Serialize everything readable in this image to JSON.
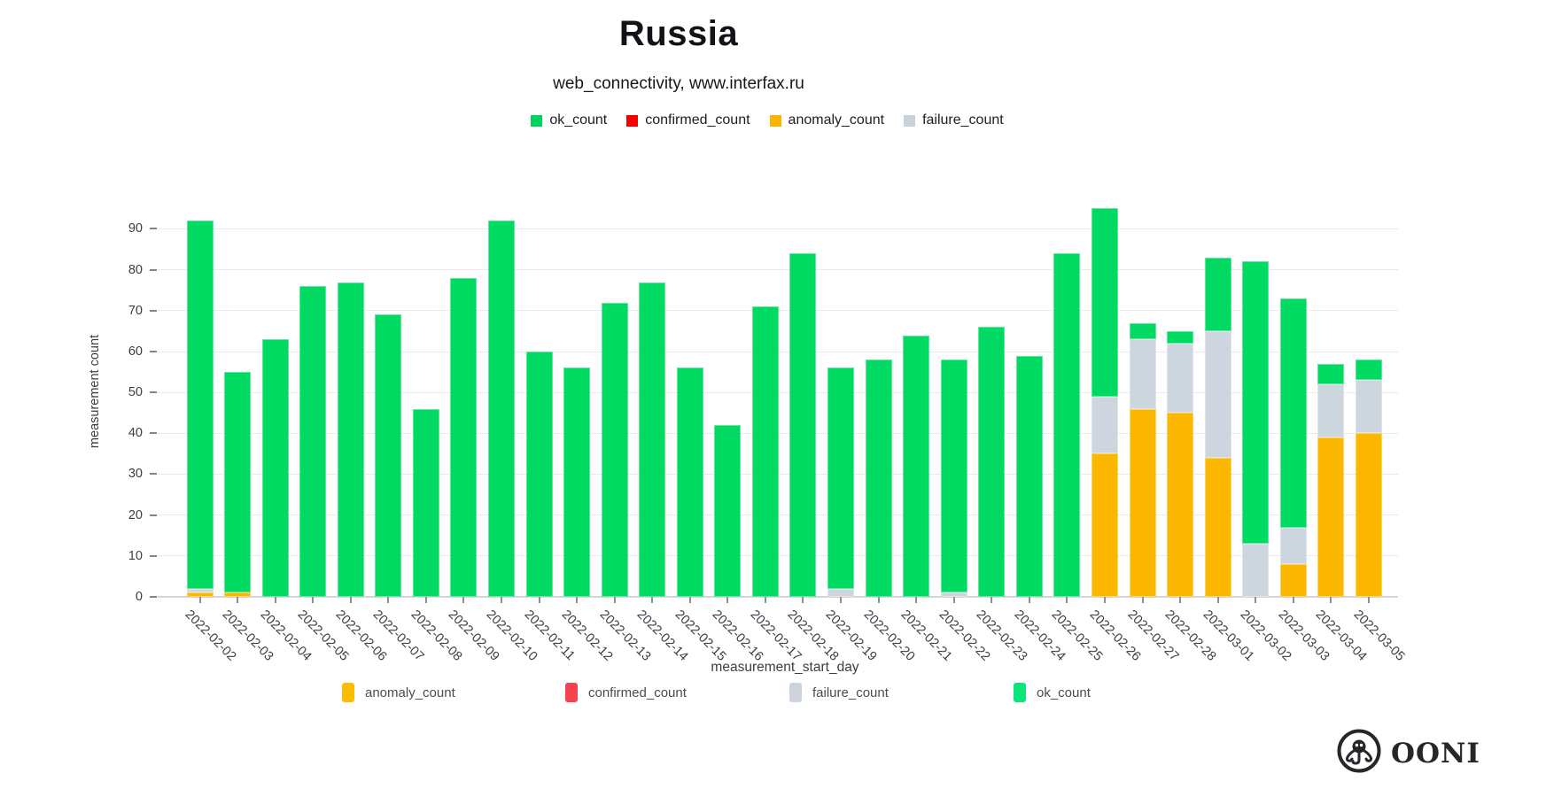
{
  "title": "Russia",
  "subtitle": "web_connectivity, www.interfax.ru",
  "xlabel": "measurement_start_day",
  "ylabel": "measurement count",
  "brand_text": "OONI",
  "legend_top": [
    {
      "label": "ok_count",
      "color": "#00d25e"
    },
    {
      "label": "confirmed_count",
      "color": "#f40000"
    },
    {
      "label": "anomaly_count",
      "color": "#fbb500"
    },
    {
      "label": "failure_count",
      "color": "#c9d2da"
    }
  ],
  "legend_bottom": [
    {
      "label": "anomaly_count",
      "color": "#fbbc04"
    },
    {
      "label": "confirmed_count",
      "color": "#f4424e"
    },
    {
      "label": "failure_count",
      "color": "#cdd3dc"
    },
    {
      "label": "ok_count",
      "color": "#0be57a"
    }
  ],
  "chart_data": {
    "type": "bar",
    "stacked": true,
    "title": "Russia",
    "subtitle": "web_connectivity, www.interfax.ru",
    "xlabel": "measurement_start_day",
    "ylabel": "measurement count",
    "grid": "horizontal",
    "legend_position": "top",
    "ylim": [
      0,
      100.5
    ],
    "yticks": [
      0,
      10,
      20,
      30,
      40,
      50,
      60,
      70,
      80,
      90
    ],
    "categories": [
      "2022-02-02",
      "2022-02-03",
      "2022-02-04",
      "2022-02-05",
      "2022-02-06",
      "2022-02-07",
      "2022-02-08",
      "2022-02-09",
      "2022-02-10",
      "2022-02-11",
      "2022-02-12",
      "2022-02-13",
      "2022-02-14",
      "2022-02-15",
      "2022-02-16",
      "2022-02-17",
      "2022-02-18",
      "2022-02-19",
      "2022-02-20",
      "2022-02-21",
      "2022-02-22",
      "2022-02-23",
      "2022-02-24",
      "2022-02-25",
      "2022-02-26",
      "2022-02-27",
      "2022-02-28",
      "2022-03-01",
      "2022-03-02",
      "2022-03-03",
      "2022-03-04",
      "2022-03-05"
    ],
    "stack_order_bottom_to_top": [
      "anomaly_count",
      "failure_count",
      "ok_count"
    ],
    "series": [
      {
        "name": "anomaly_count",
        "color": "#fcb800",
        "values": [
          1,
          1,
          0,
          0,
          0,
          0,
          0,
          0,
          0,
          0,
          0,
          0,
          0,
          0,
          0,
          0,
          0,
          0,
          0,
          0,
          0,
          0,
          0,
          0,
          35,
          46,
          45,
          34,
          0,
          8,
          39,
          40
        ]
      },
      {
        "name": "failure_count",
        "color": "#cdd5de",
        "values": [
          1,
          0,
          0,
          0,
          0,
          0,
          0,
          0,
          0,
          0,
          0,
          0,
          0,
          0,
          0,
          0,
          0,
          2,
          0,
          0,
          1,
          0,
          0,
          0,
          14,
          17,
          17,
          31,
          13,
          9,
          13,
          13
        ]
      },
      {
        "name": "ok_count",
        "color": "#00da63",
        "values": [
          90,
          54,
          63,
          76,
          77,
          69,
          46,
          78,
          92,
          60,
          56,
          72,
          77,
          56,
          42,
          71,
          84,
          54,
          58,
          64,
          57,
          66,
          59,
          84,
          46,
          4,
          3,
          18,
          69,
          56,
          5,
          5
        ]
      },
      {
        "name": "confirmed_count",
        "color": "#f40000",
        "values": [
          0,
          0,
          0,
          0,
          0,
          0,
          0,
          0,
          0,
          0,
          0,
          0,
          0,
          0,
          0,
          0,
          0,
          0,
          0,
          0,
          0,
          0,
          0,
          0,
          0,
          0,
          0,
          0,
          0,
          0,
          0,
          0
        ]
      }
    ],
    "totals": [
      92,
      55,
      63,
      76,
      77,
      69,
      46,
      78,
      92,
      60,
      56,
      72,
      77,
      56,
      42,
      71,
      84,
      56,
      58,
      64,
      58,
      66,
      59,
      84,
      95,
      67,
      65,
      83,
      82,
      73,
      57,
      58
    ]
  }
}
